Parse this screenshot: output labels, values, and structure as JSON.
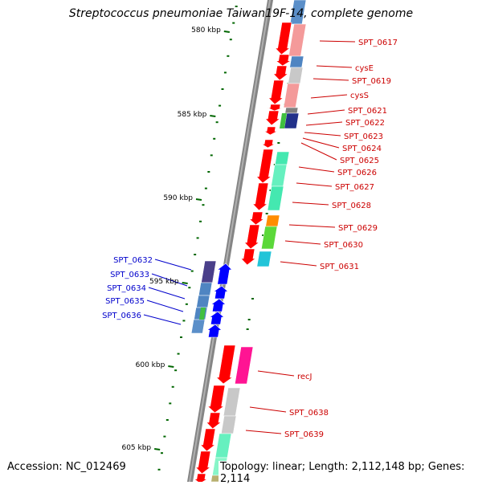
{
  "title": "Streptococcus pneumoniae Taiwan19F-14, complete genome",
  "accession_text": "Accession: NC_012469",
  "topology_text": "Topology: linear; Length: 2,112,148 bp; Genes: 2,114",
  "colors": {
    "right_label": "#cc0000",
    "left_label": "#0000cc",
    "tick": "#006600",
    "backbone": "#808080",
    "gene_red": "#ff0000",
    "gene_blue": "#0000ff"
  },
  "scale_labels": [
    {
      "label": "580 kbp",
      "kbp": 580
    },
    {
      "label": "585 kbp",
      "kbp": 585
    },
    {
      "label": "590 kbp",
      "kbp": 590
    },
    {
      "label": "595 kbp",
      "kbp": 595
    },
    {
      "label": "600 kbp",
      "kbp": 600
    },
    {
      "label": "605 kbp",
      "kbp": 605
    }
  ],
  "right_labels": [
    "SPT_0617",
    "cysE",
    "SPT_0619",
    "cysS",
    "SPT_0621",
    "SPT_0622",
    "SPT_0623",
    "SPT_0624",
    "SPT_0625",
    "SPT_0626",
    "SPT_0627",
    "SPT_0628",
    "SPT_0629",
    "SPT_0630",
    "SPT_0631",
    "recJ",
    "SPT_0638",
    "SPT_0639"
  ],
  "left_labels": [
    "SPT_0632",
    "SPT_0633",
    "SPT_0634",
    "SPT_0635",
    "SPT_0636"
  ]
}
